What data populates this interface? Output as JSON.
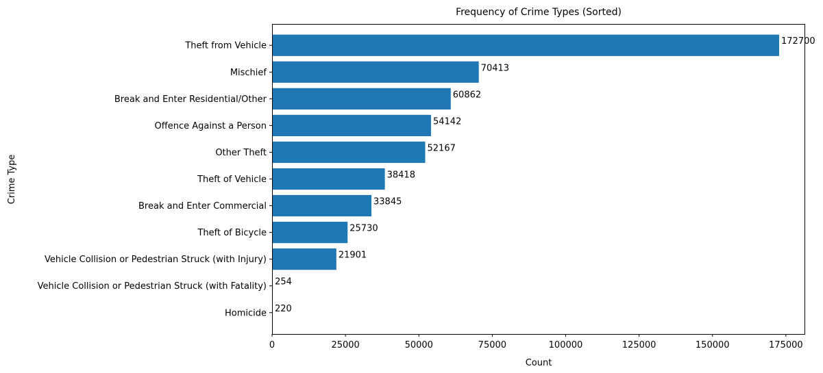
{
  "chart_data": {
    "type": "bar",
    "orientation": "horizontal",
    "title": "Frequency of Crime Types (Sorted)",
    "xlabel": "Count",
    "ylabel": "Crime Type",
    "categories": [
      "Theft from Vehicle",
      "Mischief",
      "Break and Enter Residential/Other",
      "Offence Against a Person",
      "Other Theft",
      "Theft of Vehicle",
      "Break and Enter Commercial",
      "Theft of Bicycle",
      "Vehicle Collision or Pedestrian Struck (with Injury)",
      "Vehicle Collision or Pedestrian Struck (with Fatality)",
      "Homicide"
    ],
    "values": [
      172700,
      70413,
      60862,
      54142,
      52167,
      38418,
      33845,
      25730,
      21901,
      254,
      220
    ],
    "xlim": [
      0,
      181335
    ],
    "xticks": [
      0,
      25000,
      50000,
      75000,
      100000,
      125000,
      150000,
      175000
    ],
    "bar_color": "#1f77b4",
    "grid": false,
    "legend": "none",
    "data_labels": true
  }
}
